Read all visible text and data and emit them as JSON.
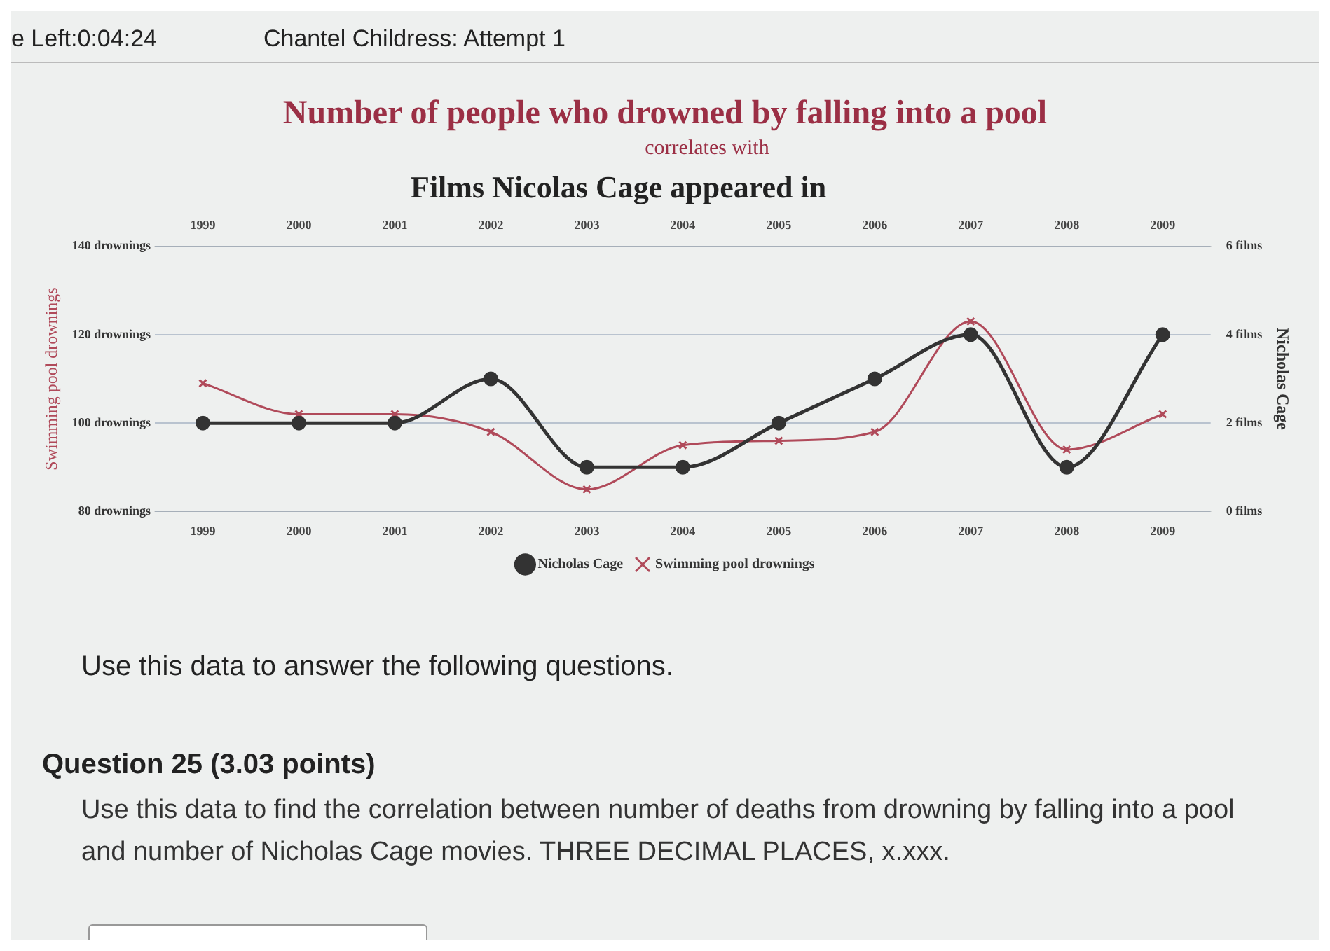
{
  "chart_data": {
    "type": "line",
    "title": "Number of people who drowned by falling into a pool",
    "subtitle": "correlates with",
    "annotations": [
      "e Left:0:04:24",
      "Chantel Childress: Attempt 1",
      "Films Nicolas Cage appeared in",
      "Use this data to answer the following questions.",
      "Question 25 (3.03 points)",
      "Use this data to find the correlation between number of deaths from drowning by falling into a pool and number of Nicholas Cage movies. THREE DECIMAL PLACES, x.xxx."
    ],
    "categories": [
      "1999",
      "2000",
      "2001",
      "2002",
      "2003",
      "2004",
      "2005",
      "2006",
      "2007",
      "2008",
      "2009"
    ],
    "series": [
      {
        "name": "Nicholas Cage",
        "color": "#333333",
        "axis": "y2",
        "marker": "circle",
        "values": [
          2,
          2,
          2,
          3,
          1,
          1,
          2,
          3,
          4,
          1,
          4
        ]
      },
      {
        "name": "Swimming pool drownings",
        "color": "#b04a5a",
        "marker": "cross",
        "values": [
          109,
          102,
          102,
          98,
          85,
          95,
          96,
          98,
          123,
          94,
          102
        ]
      }
    ],
    "ylabel": "Swimming pool drownings",
    "y2label": "Nicholas Cage",
    "ylim": [
      80,
      140
    ],
    "yticks": [
      {
        "value": 80,
        "label": "80 drownings"
      },
      {
        "value": 100,
        "label": "100 drownings"
      },
      {
        "value": 120,
        "label": "120 drownings"
      },
      {
        "value": 140,
        "label": "140 drownings"
      }
    ],
    "y2lim": [
      0,
      6
    ],
    "y2ticks": [
      {
        "value": 0,
        "label": "0 films"
      },
      {
        "value": 2,
        "label": "2 films"
      },
      {
        "value": 4,
        "label": "4 films"
      },
      {
        "value": 6,
        "label": "6 films"
      }
    ],
    "grid": "y",
    "legend": "bottom"
  }
}
